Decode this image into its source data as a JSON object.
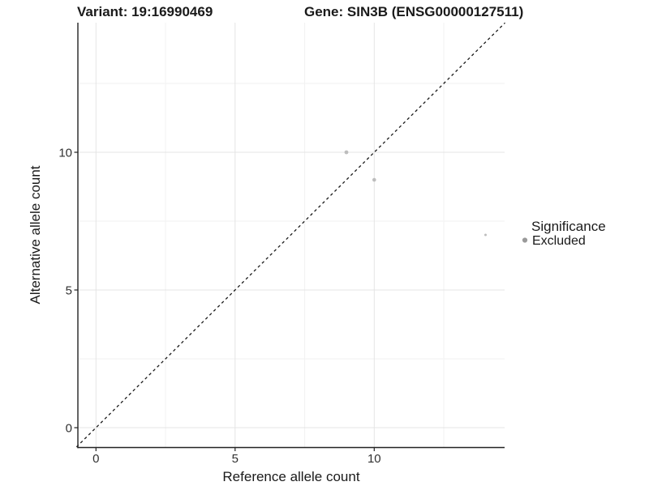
{
  "chart_data": {
    "type": "scatter",
    "title_left": "Variant: 19:16990469",
    "title_right": "Gene: SIN3B (ENSG00000127511)",
    "xlabel": "Reference allele count",
    "ylabel": "Alternative allele count",
    "xlim": [
      -0.7,
      14.7
    ],
    "ylim": [
      -0.7,
      14.7
    ],
    "x_ticks": [
      0,
      5,
      10
    ],
    "y_ticks": [
      0,
      5,
      10
    ],
    "x_minor_ticks": [
      2.5,
      7.5,
      12.5
    ],
    "y_minor_ticks": [
      2.5,
      7.5,
      12.5
    ],
    "grid": "major+minor",
    "identity_line": {
      "style": "dashed",
      "slope": 1,
      "intercept": 0
    },
    "points": [
      {
        "x": 9,
        "y": 10,
        "r": 2.4
      },
      {
        "x": 10,
        "y": 9,
        "r": 2.3
      },
      {
        "x": 14,
        "y": 7,
        "r": 1.5
      }
    ],
    "legend": {
      "position": "right",
      "title": "Significance",
      "items": [
        {
          "label": "Excluded",
          "color": "#9a9a9a"
        }
      ]
    },
    "colors": {
      "background": "#ffffff",
      "point": "#bdbdbd",
      "grid_major": "#e4e4e4",
      "grid_minor": "#f2f2f2",
      "axis_line": "#222222",
      "identity_line": "#1a1a1a",
      "tick_text": "#303030",
      "title_text": "#1a1a1a"
    }
  }
}
